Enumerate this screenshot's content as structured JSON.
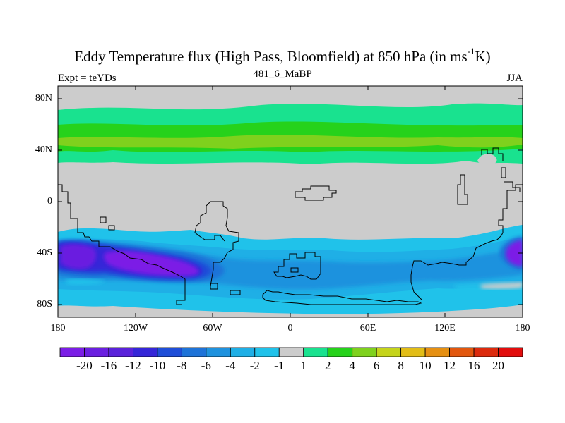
{
  "title": {
    "main_prefix": "Eddy Temperature flux (High Pass, Bloomfield) at 850 hPa (in ms",
    "superscript": "-1",
    "main_suffix": "K)",
    "left": "Expt = teYDs",
    "center": "481_6_MaBP",
    "right": "JJA"
  },
  "map": {
    "projection": "cylindrical equidistant",
    "lon_range": [
      -180,
      180
    ],
    "lat_range": [
      -90,
      90
    ],
    "lat_ticks": [
      "80N",
      "40N",
      "0",
      "40S",
      "80S"
    ],
    "lon_ticks": [
      "180",
      "120W",
      "60W",
      "0",
      "60E",
      "120E",
      "180"
    ],
    "field": "eddy temperature flux",
    "background_color": "#cccccc",
    "regions": [
      {
        "name": "northern-positive-band",
        "lat_range": [
          30,
          70
        ],
        "level": "2 to 6"
      },
      {
        "name": "southern-negative-band",
        "lat_range": [
          -90,
          -20
        ],
        "level": "-20 to -1"
      },
      {
        "name": "south-pacific-minimum",
        "lat_range": [
          -55,
          -35
        ],
        "lon_range": [
          -150,
          -80
        ],
        "level": "-20"
      }
    ]
  },
  "colorbar": {
    "labels": [
      "-20",
      "-16",
      "-12",
      "-10",
      "-8",
      "-6",
      "-4",
      "-2",
      "-1",
      "1",
      "2",
      "4",
      "6",
      "8",
      "10",
      "12",
      "16",
      "20"
    ],
    "colors": [
      "#7b1ee6",
      "#6a1fe0",
      "#5a22da",
      "#3526d8",
      "#1f4ed8",
      "#1e73d8",
      "#1f92de",
      "#1fafe6",
      "#20c2ea",
      "#cccccc",
      "#19e28f",
      "#26d21b",
      "#7fd11d",
      "#c5d41a",
      "#e2bd16",
      "#e69012",
      "#e2570e",
      "#dc2a0d",
      "#e20d0d"
    ]
  }
}
